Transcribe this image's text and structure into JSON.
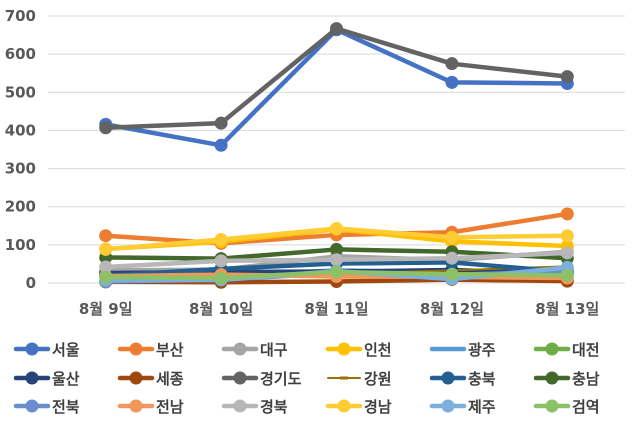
{
  "chart_data": {
    "type": "line",
    "categories": [
      "8월 9일",
      "8월 10일",
      "8월 11일",
      "8월 12일",
      "8월 13일"
    ],
    "ylim": [
      0,
      700
    ],
    "yticks": [
      0,
      100,
      200,
      300,
      400,
      500,
      600,
      700
    ],
    "grid": true,
    "legend_position": "bottom",
    "series": [
      {
        "name": "서울",
        "color": "#4472C4",
        "marker": "circle",
        "values": [
          416,
          361,
          664,
          526,
          523
        ]
      },
      {
        "name": "부산",
        "color": "#ED7D31",
        "marker": "circle",
        "values": [
          124,
          104,
          126,
          133,
          181
        ]
      },
      {
        "name": "대구",
        "color": "#A5A5A5",
        "marker": "circle",
        "values": [
          33,
          35,
          70,
          60,
          82
        ]
      },
      {
        "name": "인천",
        "color": "#FFC000",
        "marker": "circle",
        "values": [
          89,
          108,
          141,
          109,
          97
        ]
      },
      {
        "name": "광주",
        "color": "#5B9BD5",
        "marker": "none",
        "values": [
          14,
          18,
          33,
          28,
          30
        ]
      },
      {
        "name": "대전",
        "color": "#70AD47",
        "marker": "circle",
        "values": [
          21,
          17,
          25,
          30,
          35
        ]
      },
      {
        "name": "울산",
        "color": "#264478",
        "marker": "circle",
        "values": [
          26,
          29,
          30,
          34,
          24
        ]
      },
      {
        "name": "세종",
        "color": "#9E480E",
        "marker": "circle",
        "values": [
          3,
          2,
          4,
          9,
          5
        ]
      },
      {
        "name": "경기도",
        "color": "#636363",
        "marker": "circle",
        "values": [
          407,
          419,
          667,
          575,
          541
        ]
      },
      {
        "name": "강원",
        "color": "#997300",
        "marker": "dash",
        "values": [
          15,
          18,
          24,
          33,
          44
        ]
      },
      {
        "name": "충북",
        "color": "#255E91",
        "marker": "circle",
        "values": [
          19,
          37,
          51,
          54,
          29
        ]
      },
      {
        "name": "충남",
        "color": "#43682B",
        "marker": "circle",
        "values": [
          67,
          64,
          88,
          82,
          65
        ]
      },
      {
        "name": "전북",
        "color": "#698ED0",
        "marker": "circle",
        "values": [
          4,
          9,
          26,
          21,
          31
        ]
      },
      {
        "name": "전남",
        "color": "#F1975A",
        "marker": "circle",
        "values": [
          18,
          22,
          17,
          16,
          13
        ]
      },
      {
        "name": "경북",
        "color": "#B7B7B7",
        "marker": "circle",
        "values": [
          42,
          58,
          61,
          65,
          79
        ]
      },
      {
        "name": "경남",
        "color": "#FFCD33",
        "marker": "circle",
        "values": [
          88,
          114,
          143,
          120,
          124
        ]
      },
      {
        "name": "제주",
        "color": "#7CAFDD",
        "marker": "circle",
        "values": [
          7,
          8,
          31,
          10,
          41
        ]
      },
      {
        "name": "검역",
        "color": "#8CC168",
        "marker": "circle",
        "values": [
          15,
          13,
          29,
          23,
          20
        ]
      }
    ]
  }
}
